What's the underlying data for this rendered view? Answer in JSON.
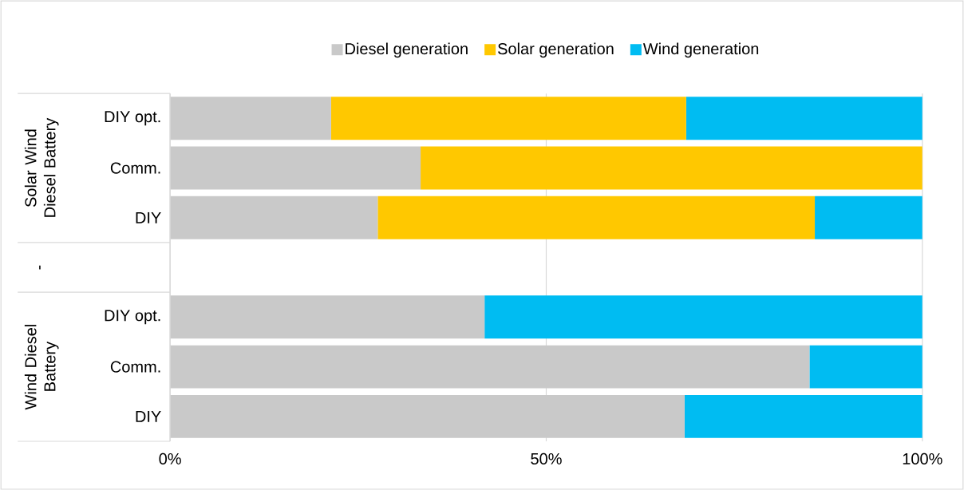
{
  "chart_data": {
    "type": "bar",
    "orientation": "horizontal",
    "stacked": true,
    "categories": [
      "DIY opt.",
      "Comm.",
      "DIY",
      null,
      "DIY opt.",
      "Comm.",
      "DIY"
    ],
    "series": [
      {
        "name": "Diesel generation",
        "color": "#c9c9c9",
        "values": [
          21.4,
          33.3,
          27.6,
          null,
          41.8,
          85.0,
          68.4
        ]
      },
      {
        "name": "Solar generation",
        "color": "#ffc800",
        "values": [
          47.2,
          66.7,
          58.1,
          null,
          0,
          0,
          0
        ]
      },
      {
        "name": "Wind generation",
        "color": "#00bcf2",
        "values": [
          31.4,
          0,
          14.3,
          null,
          58.2,
          15.0,
          31.6
        ]
      }
    ],
    "xlim": [
      0,
      100
    ],
    "xticks": [
      {
        "value": 0,
        "label": "0%"
      },
      {
        "value": 50,
        "label": "50%"
      },
      {
        "value": 100,
        "label": "100%"
      }
    ],
    "grid": "x",
    "legend": "top",
    "annotations": [
      "Solar Wind Diesel Battery",
      "-",
      "Wind Diesel Battery"
    ]
  }
}
